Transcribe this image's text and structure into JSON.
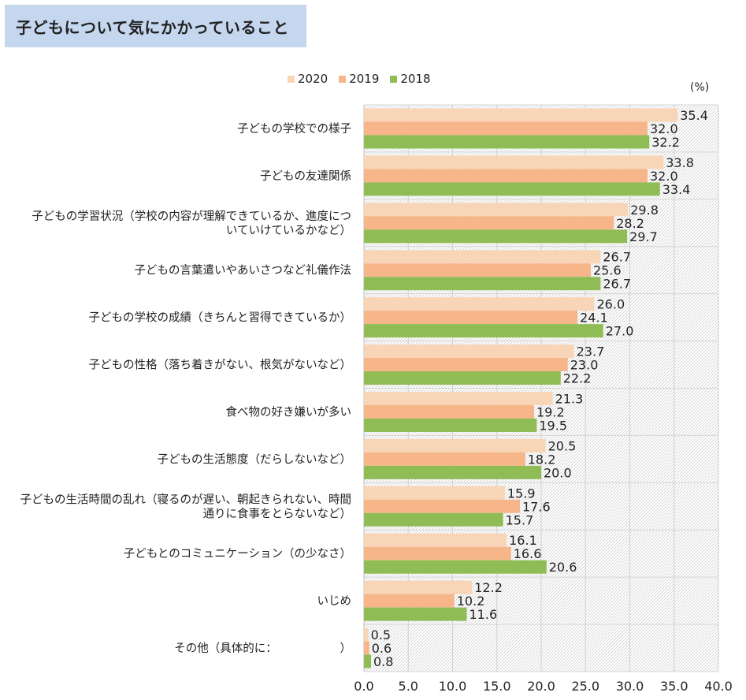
{
  "title": "子どもについて気にかかっていること",
  "unit": "(%)",
  "colors": {
    "2020": "#f9d5b8",
    "2019": "#f6b68a",
    "2018": "#8fbc54",
    "title_bg": "#c5d7ef"
  },
  "chart_data": {
    "type": "bar",
    "orientation": "horizontal",
    "title": "子どもについて気にかかっていること",
    "xlabel": "",
    "ylabel": "",
    "unit": "(%)",
    "xlim": [
      0,
      40
    ],
    "xticks": [
      "0.0",
      "5.0",
      "10.0",
      "15.0",
      "20.0",
      "25.0",
      "30.0",
      "35.0",
      "40.0"
    ],
    "legend_position": "top",
    "categories": [
      [
        "子どもの学校での様子"
      ],
      [
        "子どもの友達関係"
      ],
      [
        "子どもの学習状況（学校の内容が理解できているか、進度につ",
        "いていけているかなど）"
      ],
      [
        "子どもの言葉遣いやあいさつなど礼儀作法"
      ],
      [
        "子どもの学校の成績（きちんと習得できているか）"
      ],
      [
        "子どもの性格（落ち着きがない、根気がないなど）"
      ],
      [
        "食べ物の好き嫌いが多い"
      ],
      [
        "子どもの生活態度（だらしないなど）"
      ],
      [
        "子どもの生活時間の乱れ（寝るのが遅い、朝起きられない、時間",
        "通りに食事をとらないなど）"
      ],
      [
        "子どもとのコミュニケーション（の少なさ）"
      ],
      [
        "いじめ"
      ],
      [
        "その他（具体的に：　　　　　　）"
      ]
    ],
    "series": [
      {
        "name": "2020",
        "values": [
          35.4,
          33.8,
          29.8,
          26.7,
          26.0,
          23.7,
          21.3,
          20.5,
          15.9,
          16.1,
          12.2,
          0.5
        ]
      },
      {
        "name": "2019",
        "values": [
          32.0,
          32.0,
          28.2,
          25.6,
          24.1,
          23.0,
          19.2,
          18.2,
          17.6,
          16.6,
          10.2,
          0.6
        ]
      },
      {
        "name": "2018",
        "values": [
          32.2,
          33.4,
          29.7,
          26.7,
          27.0,
          22.2,
          19.5,
          20.0,
          15.7,
          20.6,
          11.6,
          0.8
        ]
      }
    ]
  }
}
